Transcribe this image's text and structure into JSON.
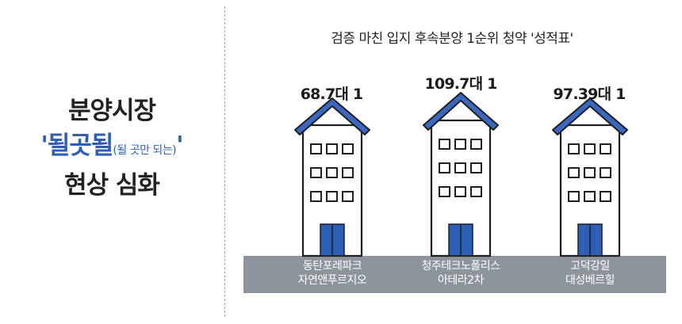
{
  "headline": {
    "line1": "분양시장",
    "line2_main": "'될곳될",
    "line2_note": "(될 곳만 되는)",
    "line2_close": "'",
    "line3": "현상 심화"
  },
  "chart_title": "검증 마친 입지 후속분양 1순위 청약 '성적표'",
  "colors": {
    "roof": "#3a68c0",
    "door": "#2f5fb5",
    "ground": "#8e949c",
    "accent": "#2f5fb5"
  },
  "chart_data": {
    "type": "table",
    "title": "검증 마친 입지 후속분양 1순위 청약 '성적표'",
    "items": [
      {
        "name_line1": "동탄포레파크",
        "name_line2": "자연앤푸르지오",
        "rate": "68.7대 1",
        "value": 68.7
      },
      {
        "name_line1": "청주테크노폴리스",
        "name_line2": "아테라2차",
        "rate": "109.7대 1",
        "value": 109.7
      },
      {
        "name_line1": "고덕강일",
        "name_line2": "대성베르힐",
        "rate": "97.39대 1",
        "value": 97.39
      }
    ]
  }
}
